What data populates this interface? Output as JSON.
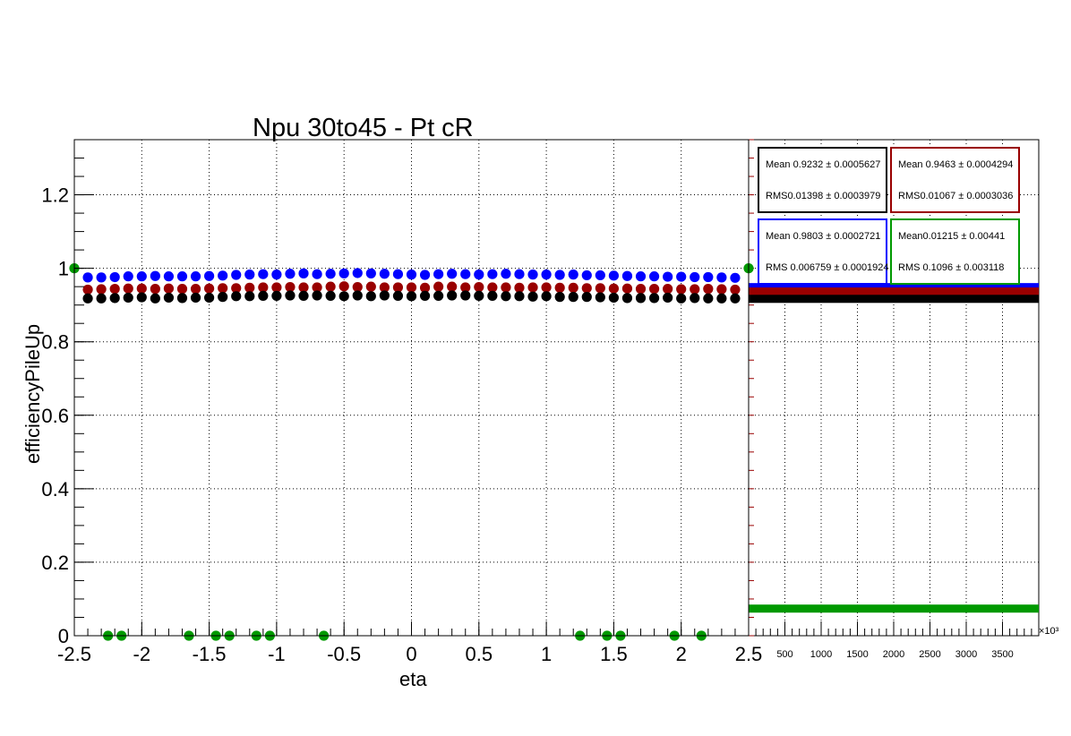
{
  "chart_data": {
    "type": "scatter",
    "title": "Npu 30to45 - Pt cR",
    "xlabel": "eta",
    "ylabel": "efficiencyPileUp",
    "xlim": [
      -2.5,
      2.5
    ],
    "ylim": [
      0,
      1.35
    ],
    "x_ticks": [
      "-2.5",
      "-2",
      "-1.5",
      "-1",
      "-0.5",
      "0",
      "0.5",
      "1",
      "1.5",
      "2",
      "2.5"
    ],
    "y_ticks": [
      "0",
      "0.2",
      "0.4",
      "0.6",
      "0.8",
      "1",
      "1.2"
    ],
    "grid": true,
    "x": [
      -2.4,
      -2.3,
      -2.2,
      -2.1,
      -2.0,
      -1.9,
      -1.8,
      -1.7,
      -1.6,
      -1.5,
      -1.4,
      -1.3,
      -1.2,
      -1.1,
      -1.0,
      -0.9,
      -0.8,
      -0.7,
      -0.6,
      -0.5,
      -0.4,
      -0.3,
      -0.2,
      -0.1,
      0.0,
      0.1,
      0.2,
      0.3,
      0.4,
      0.5,
      0.6,
      0.7,
      0.8,
      0.9,
      1.0,
      1.1,
      1.2,
      1.3,
      1.4,
      1.5,
      1.6,
      1.7,
      1.8,
      1.9,
      2.0,
      2.1,
      2.2,
      2.3,
      2.4
    ],
    "series": [
      {
        "color": "#0000ff",
        "values": [
          0.975,
          0.975,
          0.976,
          0.978,
          0.978,
          0.979,
          0.978,
          0.978,
          0.978,
          0.979,
          0.98,
          0.982,
          0.983,
          0.984,
          0.983,
          0.985,
          0.986,
          0.984,
          0.985,
          0.986,
          0.987,
          0.986,
          0.985,
          0.984,
          0.983,
          0.982,
          0.984,
          0.985,
          0.984,
          0.983,
          0.984,
          0.985,
          0.984,
          0.983,
          0.983,
          0.982,
          0.983,
          0.981,
          0.981,
          0.98,
          0.979,
          0.978,
          0.978,
          0.977,
          0.977,
          0.976,
          0.976,
          0.975,
          0.974
        ]
      },
      {
        "color": "#990000",
        "values": [
          0.942,
          0.943,
          0.944,
          0.945,
          0.945,
          0.944,
          0.945,
          0.944,
          0.944,
          0.945,
          0.946,
          0.946,
          0.947,
          0.948,
          0.948,
          0.949,
          0.948,
          0.948,
          0.95,
          0.951,
          0.949,
          0.95,
          0.948,
          0.948,
          0.948,
          0.947,
          0.95,
          0.95,
          0.948,
          0.949,
          0.948,
          0.948,
          0.947,
          0.948,
          0.948,
          0.947,
          0.947,
          0.946,
          0.946,
          0.945,
          0.945,
          0.944,
          0.944,
          0.944,
          0.943,
          0.943,
          0.944,
          0.943,
          0.942
        ]
      },
      {
        "color": "#000000",
        "values": [
          0.918,
          0.918,
          0.919,
          0.92,
          0.921,
          0.918,
          0.92,
          0.919,
          0.92,
          0.92,
          0.922,
          0.924,
          0.924,
          0.925,
          0.925,
          0.926,
          0.925,
          0.926,
          0.925,
          0.924,
          0.926,
          0.924,
          0.926,
          0.925,
          0.924,
          0.925,
          0.925,
          0.926,
          0.926,
          0.925,
          0.925,
          0.924,
          0.924,
          0.923,
          0.924,
          0.922,
          0.922,
          0.922,
          0.921,
          0.92,
          0.919,
          0.919,
          0.919,
          0.92,
          0.918,
          0.919,
          0.918,
          0.918,
          0.918
        ]
      },
      {
        "color": "#009900",
        "x": [
          -2.5,
          -2.25,
          -2.15,
          -1.65,
          -1.45,
          -1.35,
          -1.15,
          -1.05,
          -0.65,
          1.25,
          1.45,
          1.55,
          1.95,
          2.15,
          2.5
        ],
        "values": [
          1.0,
          0,
          0,
          0,
          0,
          0,
          0,
          0,
          0,
          0,
          0,
          0,
          0,
          0,
          1.0
        ]
      }
    ]
  },
  "side_histogram": {
    "exponent": "×10³",
    "x_ticks": [
      "500",
      "1000",
      "1500",
      "2000",
      "2500",
      "3000",
      "3500"
    ],
    "x_tick_values": [
      500,
      1000,
      1500,
      2000,
      2500,
      3000,
      3500
    ],
    "xlim": [
      0,
      4000
    ],
    "bands": [
      {
        "color": "#0000ff",
        "value": 0.95
      },
      {
        "color": "#990000",
        "value": 0.938
      },
      {
        "color": "#000000",
        "value": 0.918
      },
      {
        "color": "#009900",
        "value": 0.075
      }
    ]
  },
  "stat_boxes": [
    {
      "color": "#000000",
      "mean": "Mean 0.9232 ± 0.0005627",
      "rms": "RMS0.01398 ± 0.0003979"
    },
    {
      "color": "#990000",
      "mean": "Mean 0.9463 ± 0.0004294",
      "rms": "RMS0.01067 ± 0.0003036"
    },
    {
      "color": "#0000ff",
      "mean": "Mean      0.9803 ± 0.0002721",
      "rms": "RMS  0.006759 ± 0.0001924"
    },
    {
      "color": "#009900",
      "mean": "Mean0.01215 ± 0.00441",
      "rms": "RMS 0.1096 ± 0.003118"
    }
  ]
}
